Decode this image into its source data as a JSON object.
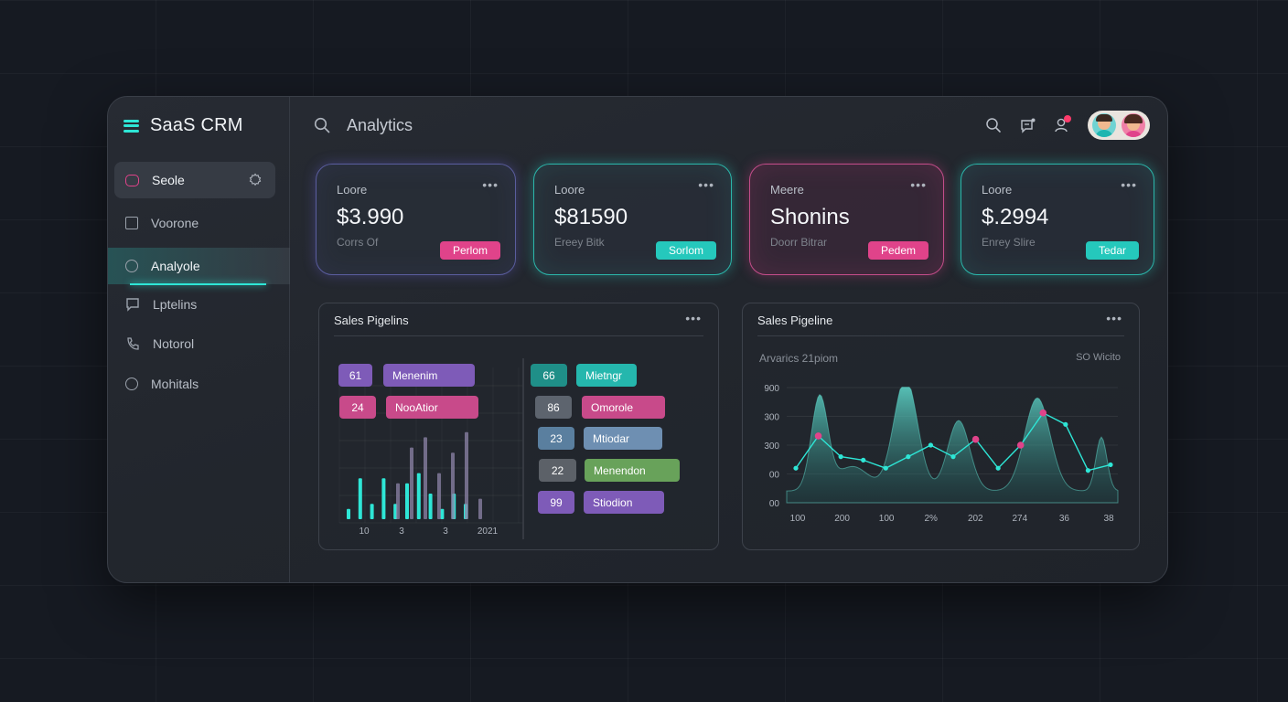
{
  "app": {
    "title": "SaaS CRM",
    "page_title": "Analytics"
  },
  "sidebar": {
    "items": [
      {
        "label": "Seole",
        "icon": "rounded-square-icon"
      },
      {
        "label": "Voorone",
        "icon": "square-icon"
      },
      {
        "label": "Analyole",
        "icon": "circle-icon"
      },
      {
        "label": "Lptelins",
        "icon": "message-icon"
      },
      {
        "label": "Notorol",
        "icon": "phone-icon"
      },
      {
        "label": "Mohitals",
        "icon": "circle-icon"
      }
    ]
  },
  "stat_cards": [
    {
      "label": "Loore",
      "value": "$3.990",
      "sub": "Corrs Of",
      "badge": "Perlom",
      "accent": "#e0438a"
    },
    {
      "label": "Loore",
      "value": "$81590",
      "sub": "Ereey Bitk",
      "badge": "Sorlom",
      "accent": "#2ee6d6"
    },
    {
      "label": "Meere",
      "value": "Shonins",
      "sub": "Doorr Bitrar",
      "badge": "Pedem",
      "accent": "#e0438a"
    },
    {
      "label": "Loore",
      "value": "$.2994",
      "sub": "Enrey Slire",
      "badge": "Tedar",
      "accent": "#2ee6d6"
    }
  ],
  "panels": {
    "left_title": "Sales Pigelins",
    "right_title": "Sales Pigeline",
    "right_subtitle": "Arvarics 21piom",
    "right_legend": "SO Wicito",
    "more": "•••"
  },
  "pipeline_tags_left": [
    {
      "num": "61",
      "label": "Menenim",
      "color": "#7e5bb8"
    },
    {
      "num": "24",
      "label": "NooAtior",
      "color": "#c84a8a"
    }
  ],
  "pipeline_tags_right": [
    {
      "num": "66",
      "label": "Mietngr",
      "color_num": "#1f8f88",
      "color": "#25b7ad"
    },
    {
      "num": "86",
      "label": "Omorole",
      "color_num": "#5d646e",
      "color": "#c84a8a"
    },
    {
      "num": "23",
      "label": "Mtiodar",
      "color_num": "#5a7f9f",
      "color": "#6e8fb2"
    },
    {
      "num": "22",
      "label": "Menendon",
      "color_num": "#5c6168",
      "color": "#68a25a"
    },
    {
      "num": "99",
      "label": "Stiodion",
      "color_num": "#7e5bb8",
      "color": "#7e5bb8"
    }
  ],
  "chart_data": [
    {
      "type": "bar",
      "title": "Sales Pigelins",
      "x_tick_labels": [
        "10",
        "3",
        "3",
        "2021"
      ],
      "series": [
        {
          "values": [
            2,
            8,
            3,
            8,
            3,
            7,
            9,
            5,
            2,
            5,
            3
          ]
        },
        {
          "values": [
            7,
            14,
            16,
            9,
            13,
            17,
            4
          ]
        }
      ]
    },
    {
      "type": "area",
      "title": "Sales Pigeline",
      "subtitle": "Arvarics 21piom",
      "y_tick_labels": [
        "900",
        "300",
        "300",
        "00",
        "00"
      ],
      "x_tick_labels": [
        "100",
        "200",
        "100",
        "2%",
        "202",
        "274",
        "36",
        "38"
      ],
      "line_points": [
        0.3,
        0.58,
        0.4,
        0.37,
        0.3,
        0.4,
        0.5,
        0.4,
        0.55,
        0.3,
        0.5,
        0.78,
        0.68,
        0.28,
        0.33
      ],
      "highlight_points": [
        1,
        8,
        10,
        11
      ]
    }
  ],
  "colors": {
    "accent_teal": "#2ee6d6",
    "accent_pink": "#e0438a",
    "accent_purple": "#7e5bb8",
    "background": "#161a22"
  },
  "icons": {
    "topbar": [
      "search-icon",
      "chat-icon",
      "user-icon"
    ]
  }
}
